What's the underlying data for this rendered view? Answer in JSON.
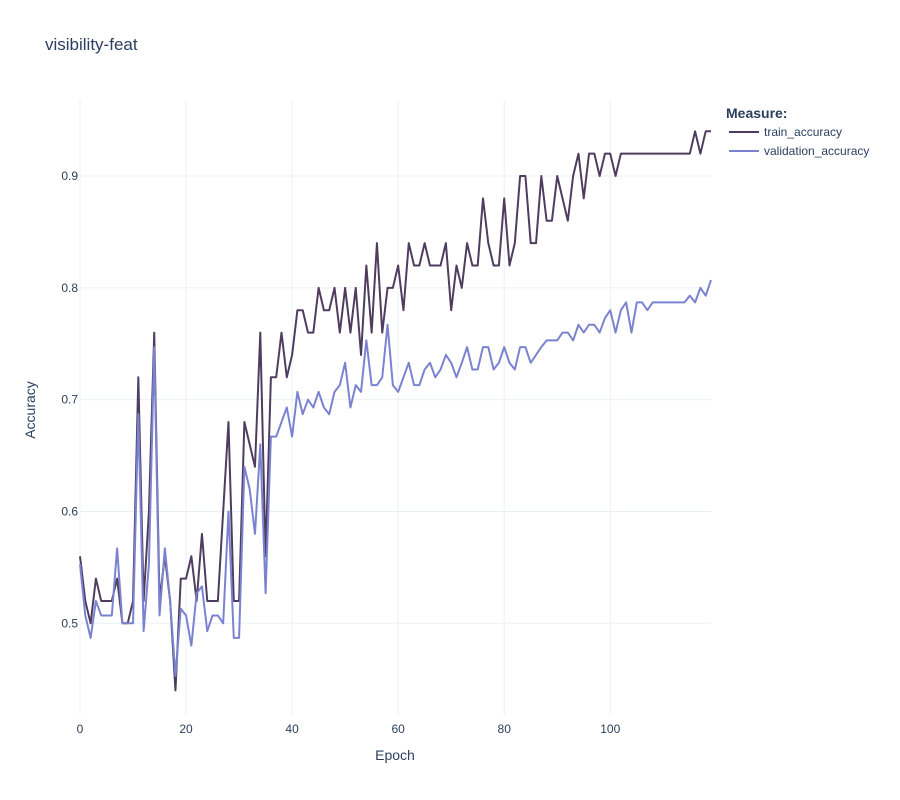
{
  "chart_data": {
    "type": "line",
    "title": "visibility-feat",
    "xlabel": "Epoch",
    "ylabel": "Accuracy",
    "xlim": [
      0,
      119
    ],
    "ylim": [
      0.418,
      0.968
    ],
    "xticks": [
      0,
      20,
      40,
      60,
      80,
      100
    ],
    "yticks": [
      0.5,
      0.6,
      0.7,
      0.8,
      0.9
    ],
    "grid": true,
    "legend": {
      "title": "Measure:",
      "position": "top-right"
    },
    "series": [
      {
        "name": "train_accuracy",
        "color": "#4f3d5f",
        "x": [
          0,
          1,
          2,
          3,
          4,
          5,
          6,
          7,
          8,
          9,
          10,
          11,
          12,
          13,
          14,
          15,
          16,
          17,
          18,
          19,
          20,
          21,
          22,
          23,
          24,
          25,
          26,
          27,
          28,
          29,
          30,
          31,
          32,
          33,
          34,
          35,
          36,
          37,
          38,
          39,
          40,
          41,
          42,
          43,
          44,
          45,
          46,
          47,
          48,
          49,
          50,
          51,
          52,
          53,
          54,
          55,
          56,
          57,
          58,
          59,
          60,
          61,
          62,
          63,
          64,
          65,
          66,
          67,
          68,
          69,
          70,
          71,
          72,
          73,
          74,
          75,
          76,
          77,
          78,
          79,
          80,
          81,
          82,
          83,
          84,
          85,
          86,
          87,
          88,
          89,
          90,
          91,
          92,
          93,
          94,
          95,
          96,
          97,
          98,
          99,
          100,
          101,
          102,
          103,
          104,
          105,
          106,
          107,
          108,
          109,
          110,
          111,
          112,
          113,
          114,
          115,
          116,
          117,
          118,
          119
        ],
        "values": [
          0.56,
          0.52,
          0.5,
          0.54,
          0.52,
          0.52,
          0.52,
          0.54,
          0.5,
          0.5,
          0.52,
          0.72,
          0.52,
          0.6,
          0.76,
          0.52,
          0.56,
          0.52,
          0.44,
          0.54,
          0.54,
          0.56,
          0.52,
          0.58,
          0.52,
          0.52,
          0.52,
          0.6,
          0.68,
          0.52,
          0.52,
          0.68,
          0.66,
          0.64,
          0.76,
          0.56,
          0.72,
          0.72,
          0.76,
          0.72,
          0.74,
          0.78,
          0.78,
          0.76,
          0.76,
          0.8,
          0.78,
          0.78,
          0.8,
          0.76,
          0.8,
          0.76,
          0.8,
          0.74,
          0.82,
          0.76,
          0.84,
          0.76,
          0.8,
          0.8,
          0.82,
          0.78,
          0.84,
          0.82,
          0.82,
          0.84,
          0.82,
          0.82,
          0.82,
          0.84,
          0.78,
          0.82,
          0.8,
          0.84,
          0.82,
          0.82,
          0.88,
          0.84,
          0.82,
          0.82,
          0.88,
          0.82,
          0.84,
          0.9,
          0.9,
          0.84,
          0.84,
          0.9,
          0.86,
          0.86,
          0.9,
          0.88,
          0.86,
          0.9,
          0.92,
          0.88,
          0.92,
          0.92,
          0.9,
          0.92,
          0.92,
          0.9,
          0.92,
          0.92,
          0.92,
          0.92,
          0.92,
          0.92,
          0.92,
          0.92,
          0.92,
          0.92,
          0.92,
          0.92,
          0.92,
          0.92,
          0.94,
          0.92,
          0.94,
          0.94
        ]
      },
      {
        "name": "validation_accuracy",
        "color": "#7b83d0",
        "x": [
          0,
          1,
          2,
          3,
          4,
          5,
          6,
          7,
          8,
          9,
          10,
          11,
          12,
          13,
          14,
          15,
          16,
          17,
          18,
          19,
          20,
          21,
          22,
          23,
          24,
          25,
          26,
          27,
          28,
          29,
          30,
          31,
          32,
          33,
          34,
          35,
          36,
          37,
          38,
          39,
          40,
          41,
          42,
          43,
          44,
          45,
          46,
          47,
          48,
          49,
          50,
          51,
          52,
          53,
          54,
          55,
          56,
          57,
          58,
          59,
          60,
          61,
          62,
          63,
          64,
          65,
          66,
          67,
          68,
          69,
          70,
          71,
          72,
          73,
          74,
          75,
          76,
          77,
          78,
          79,
          80,
          81,
          82,
          83,
          84,
          85,
          86,
          87,
          88,
          89,
          90,
          91,
          92,
          93,
          94,
          95,
          96,
          97,
          98,
          99,
          100,
          101,
          102,
          103,
          104,
          105,
          106,
          107,
          108,
          109,
          110,
          111,
          112,
          113,
          114,
          115,
          116,
          117,
          118,
          119
        ],
        "values": [
          0.553,
          0.507,
          0.487,
          0.52,
          0.507,
          0.507,
          0.507,
          0.567,
          0.5,
          0.5,
          0.5,
          0.687,
          0.493,
          0.553,
          0.747,
          0.507,
          0.567,
          0.52,
          0.453,
          0.513,
          0.507,
          0.48,
          0.527,
          0.533,
          0.493,
          0.507,
          0.507,
          0.5,
          0.6,
          0.487,
          0.487,
          0.64,
          0.62,
          0.58,
          0.66,
          0.527,
          0.667,
          0.667,
          0.68,
          0.693,
          0.667,
          0.707,
          0.687,
          0.7,
          0.693,
          0.707,
          0.693,
          0.687,
          0.707,
          0.713,
          0.733,
          0.693,
          0.713,
          0.707,
          0.753,
          0.713,
          0.713,
          0.72,
          0.767,
          0.713,
          0.707,
          0.72,
          0.733,
          0.713,
          0.713,
          0.727,
          0.733,
          0.72,
          0.727,
          0.74,
          0.733,
          0.72,
          0.733,
          0.747,
          0.727,
          0.727,
          0.747,
          0.747,
          0.727,
          0.733,
          0.747,
          0.733,
          0.727,
          0.747,
          0.747,
          0.733,
          0.74,
          0.747,
          0.753,
          0.753,
          0.753,
          0.76,
          0.76,
          0.753,
          0.767,
          0.76,
          0.767,
          0.767,
          0.76,
          0.773,
          0.78,
          0.76,
          0.78,
          0.787,
          0.76,
          0.787,
          0.787,
          0.78,
          0.787,
          0.787,
          0.787,
          0.787,
          0.787,
          0.787,
          0.787,
          0.793,
          0.787,
          0.8,
          0.793,
          0.807
        ]
      }
    ]
  }
}
